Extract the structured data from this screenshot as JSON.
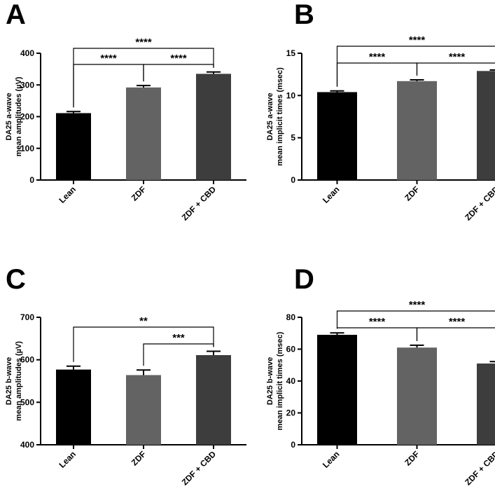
{
  "chart_data": [
    {
      "panel": "A",
      "type": "bar",
      "categories": [
        "Lean",
        "ZDF",
        "ZDF + CBD"
      ],
      "values": [
        211,
        292,
        335
      ],
      "errors": [
        5,
        6,
        6
      ],
      "colors": [
        "#000000",
        "#636363",
        "#3d3d3d"
      ],
      "ylabel": [
        "DA25 a-wave",
        "mean amplitudes (µV)"
      ],
      "ylim": [
        0,
        400
      ],
      "yticks": [
        0,
        100,
        200,
        300,
        400
      ],
      "comparisons": [
        {
          "from": 0,
          "to": 1,
          "label": "****"
        },
        {
          "from": 1,
          "to": 2,
          "label": "****"
        },
        {
          "from": 0,
          "to": 2,
          "label": "****"
        }
      ],
      "grid": false
    },
    {
      "panel": "B",
      "type": "bar",
      "categories": [
        "Lean",
        "ZDF",
        "ZDF + CBD"
      ],
      "values": [
        10.4,
        11.7,
        12.9
      ],
      "errors": [
        0.15,
        0.15,
        0.12
      ],
      "colors": [
        "#000000",
        "#636363",
        "#3d3d3d"
      ],
      "ylabel": [
        "DA25 a-wave",
        "mean implicit times (msec)"
      ],
      "ylim": [
        0,
        15
      ],
      "yticks": [
        0,
        5,
        10,
        15
      ],
      "comparisons": [
        {
          "from": 0,
          "to": 1,
          "label": "****"
        },
        {
          "from": 1,
          "to": 2,
          "label": "****"
        },
        {
          "from": 0,
          "to": 2,
          "label": "****"
        }
      ],
      "grid": false
    },
    {
      "panel": "C",
      "type": "bar",
      "categories": [
        "Lean",
        "ZDF",
        "ZDF + CBD"
      ],
      "values": [
        577,
        564,
        611
      ],
      "errors": [
        8,
        12,
        9
      ],
      "colors": [
        "#000000",
        "#636363",
        "#3d3d3d"
      ],
      "ylabel": [
        "DA25 b-wave",
        "mean amplitudes (µV)"
      ],
      "ylim": [
        400,
        700
      ],
      "yticks": [
        400,
        500,
        600,
        700
      ],
      "comparisons": [
        {
          "from": 1,
          "to": 2,
          "label": "***"
        },
        {
          "from": 0,
          "to": 2,
          "label": "**"
        }
      ],
      "grid": false
    },
    {
      "panel": "D",
      "type": "bar",
      "categories": [
        "Lean",
        "ZDF",
        "ZDF + CBD"
      ],
      "values": [
        69,
        61,
        51
      ],
      "errors": [
        1.2,
        1.5,
        1.2
      ],
      "colors": [
        "#000000",
        "#636363",
        "#3d3d3d"
      ],
      "ylabel": [
        "DA25 b-wave",
        "mean implicit times (msec)"
      ],
      "ylim": [
        0,
        80
      ],
      "yticks": [
        0,
        20,
        40,
        60,
        80
      ],
      "comparisons": [
        {
          "from": 0,
          "to": 1,
          "label": "****"
        },
        {
          "from": 1,
          "to": 2,
          "label": "****"
        },
        {
          "from": 0,
          "to": 2,
          "label": "****"
        }
      ],
      "grid": false
    }
  ]
}
